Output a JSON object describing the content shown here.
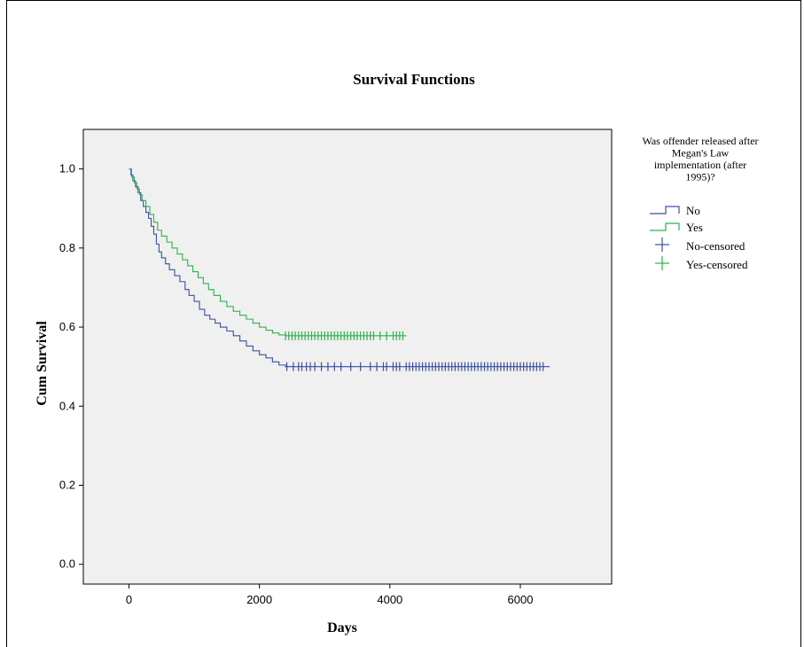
{
  "chart_data": {
    "type": "line",
    "title": "Survival Functions",
    "xlabel": "Days",
    "ylabel": "Cum Survival",
    "xlim": [
      -700,
      7400
    ],
    "ylim": [
      -0.05,
      1.1
    ],
    "x_ticks": [
      0,
      2000,
      4000,
      6000
    ],
    "x_tick_labels": [
      "0",
      "2000",
      "4000",
      "6000"
    ],
    "y_ticks": [
      0.0,
      0.2,
      0.4,
      0.6,
      0.8,
      1.0
    ],
    "y_tick_labels": [
      "0.0",
      "0.2",
      "0.4",
      "0.6",
      "0.8",
      "1.0"
    ],
    "grid": false,
    "legend": {
      "title": "Was offender released after Megan's Law implementation (after 1995)?",
      "title_lines": [
        "Was offender released after",
        "Megan's Law",
        "implementation (after",
        "1995)?"
      ],
      "placement": "right",
      "entries": [
        "No",
        "Yes",
        "No-censored",
        "Yes-censored"
      ]
    },
    "series": [
      {
        "name": "No",
        "color": "#3a4fa0",
        "points": [
          [
            0,
            1.0
          ],
          [
            30,
            0.985
          ],
          [
            60,
            0.97
          ],
          [
            100,
            0.955
          ],
          [
            140,
            0.94
          ],
          [
            180,
            0.92
          ],
          [
            220,
            0.905
          ],
          [
            260,
            0.89
          ],
          [
            300,
            0.875
          ],
          [
            340,
            0.855
          ],
          [
            380,
            0.835
          ],
          [
            420,
            0.81
          ],
          [
            460,
            0.79
          ],
          [
            500,
            0.775
          ],
          [
            560,
            0.76
          ],
          [
            620,
            0.745
          ],
          [
            700,
            0.73
          ],
          [
            780,
            0.715
          ],
          [
            860,
            0.695
          ],
          [
            920,
            0.68
          ],
          [
            1000,
            0.665
          ],
          [
            1080,
            0.645
          ],
          [
            1160,
            0.63
          ],
          [
            1240,
            0.62
          ],
          [
            1320,
            0.61
          ],
          [
            1400,
            0.6
          ],
          [
            1500,
            0.59
          ],
          [
            1600,
            0.578
          ],
          [
            1700,
            0.565
          ],
          [
            1800,
            0.552
          ],
          [
            1900,
            0.54
          ],
          [
            2000,
            0.53
          ],
          [
            2100,
            0.522
          ],
          [
            2200,
            0.512
          ],
          [
            2300,
            0.504
          ],
          [
            2400,
            0.5
          ],
          [
            6450,
            0.5
          ]
        ],
        "censored_x": [
          2420,
          2520,
          2600,
          2650,
          2720,
          2780,
          2850,
          2950,
          3050,
          3150,
          3250,
          3400,
          3550,
          3700,
          3800,
          3900,
          3950,
          4050,
          4100,
          4150,
          4250,
          4300,
          4350,
          4400,
          4450,
          4500,
          4550,
          4600,
          4650,
          4700,
          4750,
          4800,
          4850,
          4900,
          4950,
          5000,
          5050,
          5100,
          5150,
          5200,
          5250,
          5300,
          5350,
          5400,
          5450,
          5500,
          5550,
          5600,
          5650,
          5700,
          5750,
          5800,
          5850,
          5900,
          5950,
          6000,
          6050,
          6100,
          6150,
          6200,
          6250,
          6300,
          6350
        ],
        "censored_y": 0.5
      },
      {
        "name": "Yes",
        "color": "#2bb34b",
        "points": [
          [
            0,
            1.0
          ],
          [
            40,
            0.98
          ],
          [
            80,
            0.965
          ],
          [
            120,
            0.95
          ],
          [
            160,
            0.935
          ],
          [
            200,
            0.92
          ],
          [
            260,
            0.905
          ],
          [
            320,
            0.885
          ],
          [
            380,
            0.865
          ],
          [
            440,
            0.845
          ],
          [
            500,
            0.83
          ],
          [
            580,
            0.815
          ],
          [
            660,
            0.8
          ],
          [
            740,
            0.785
          ],
          [
            820,
            0.77
          ],
          [
            900,
            0.755
          ],
          [
            980,
            0.74
          ],
          [
            1060,
            0.725
          ],
          [
            1140,
            0.71
          ],
          [
            1220,
            0.695
          ],
          [
            1300,
            0.68
          ],
          [
            1400,
            0.665
          ],
          [
            1500,
            0.652
          ],
          [
            1600,
            0.64
          ],
          [
            1700,
            0.63
          ],
          [
            1800,
            0.62
          ],
          [
            1900,
            0.61
          ],
          [
            2000,
            0.6
          ],
          [
            2100,
            0.592
          ],
          [
            2200,
            0.585
          ],
          [
            2300,
            0.58
          ],
          [
            2400,
            0.578
          ],
          [
            4250,
            0.578
          ]
        ],
        "censored_x": [
          2400,
          2450,
          2500,
          2550,
          2600,
          2650,
          2700,
          2750,
          2800,
          2850,
          2900,
          2950,
          3000,
          3050,
          3100,
          3150,
          3200,
          3250,
          3300,
          3350,
          3400,
          3450,
          3500,
          3550,
          3600,
          3650,
          3700,
          3750,
          3850,
          3950,
          4050,
          4100,
          4150,
          4200
        ],
        "censored_y": 0.578
      }
    ]
  }
}
